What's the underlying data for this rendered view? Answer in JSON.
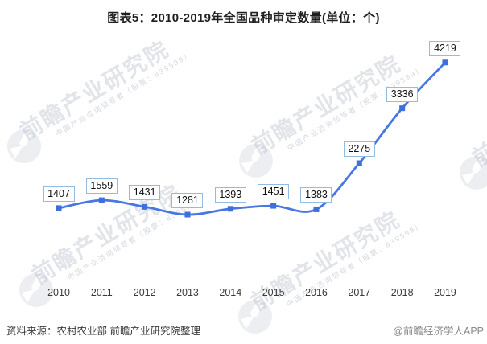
{
  "chart_data": {
    "type": "line",
    "title": "图表5：2010-2019年全国品种审定数量(单位：个)",
    "categories": [
      "2010",
      "2011",
      "2012",
      "2013",
      "2014",
      "2015",
      "2016",
      "2017",
      "2018",
      "2019"
    ],
    "values": [
      1407,
      1559,
      1431,
      1281,
      1393,
      1451,
      1383,
      2275,
      3336,
      4219
    ],
    "xlabel": "",
    "ylabel": "",
    "ylim": [
      0,
      4500
    ],
    "grid": false,
    "legend": "none",
    "data_labels": true,
    "marker": "square",
    "smooth": true
  },
  "footer": {
    "source": "资料来源：农村农业部 前瞻产业研究院整理",
    "credit": "@前瞻经济学人APP"
  },
  "watermark": {
    "brand": "前瞻产业研究院",
    "slogan": "中国产业咨询领导者（股票：839599）",
    "logo": "qianzhan-circle-logo"
  },
  "colors": {
    "line": "#4777e3",
    "marker": "#3f6ede",
    "label_box_border": "#94bbe0",
    "label_box_bg": "#ffffff",
    "axis_line": "#d4d4d4",
    "title_text": "#1f1f1f",
    "axis_text": "#3a3a3a",
    "source_text": "#3d3d3d",
    "credit_text": "#8a8a8a",
    "watermark_grey": "#e9ebef"
  }
}
